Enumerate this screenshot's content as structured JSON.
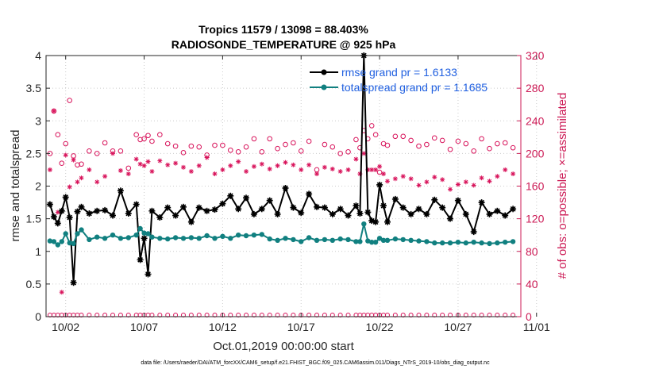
{
  "chart_data": {
    "type": "line",
    "title": "Tropics 11579 / 13098 = 88.403%",
    "subtitle": "RADIOSONDE_TEMPERATURE @ 925 hPa",
    "xlabel": "Oct.01,2019 00:00:00 start",
    "ylabel": "rmse and totalspread",
    "y2label": "# of obs: o=possible; ×=assimilated",
    "footer": "data file: /Users/raeder/DAI/ATM_forcXX/CAM6_setup/f.e21.FHIST_BGC.f09_025.CAM6assim.011/Diags_NTrS_2019-10/obs_diag_output.nc",
    "xlim": [
      0.75,
      31
    ],
    "ylim": [
      0,
      4
    ],
    "y2lim": [
      0,
      320
    ],
    "xticks": [
      2,
      7,
      12,
      17,
      22,
      27,
      32
    ],
    "xtick_labels": [
      "10/02",
      "10/07",
      "10/12",
      "10/17",
      "10/22",
      "10/27",
      "11/01"
    ],
    "yticks": [
      "0",
      "0.5",
      "1",
      "1.5",
      "2",
      "2.5",
      "3",
      "3.5",
      "4"
    ],
    "y2ticks": [
      "0",
      "40",
      "80",
      "120",
      "160",
      "200",
      "240",
      "280",
      "320"
    ],
    "grid": true,
    "legend_position": "top-right",
    "x": [
      1.0,
      1.25,
      1.5,
      1.75,
      2.0,
      2.25,
      2.5,
      2.75,
      3.0,
      3.5,
      4.0,
      4.5,
      5.0,
      5.5,
      6.0,
      6.5,
      6.75,
      7.0,
      7.25,
      7.5,
      8.0,
      8.5,
      9.0,
      9.5,
      10.0,
      10.5,
      11.0,
      11.5,
      12.0,
      12.5,
      13.0,
      13.5,
      14.0,
      14.5,
      15.0,
      15.5,
      16.0,
      16.5,
      17.0,
      17.5,
      18.0,
      18.5,
      19.0,
      19.5,
      20.0,
      20.5,
      20.75,
      21.0,
      21.25,
      21.5,
      21.75,
      22.0,
      22.25,
      22.5,
      23.0,
      23.5,
      24.0,
      24.5,
      25.0,
      25.5,
      26.0,
      26.5,
      27.0,
      27.5,
      28.0,
      28.5,
      29.0,
      29.5,
      30.0,
      30.5
    ],
    "series": [
      {
        "name": "rmse grand pr = 1.6133",
        "color": "#000000",
        "values": [
          1.72,
          1.53,
          1.43,
          1.62,
          1.83,
          1.52,
          0.52,
          1.61,
          1.68,
          1.58,
          1.62,
          1.63,
          1.55,
          1.93,
          1.58,
          1.72,
          0.87,
          1.2,
          0.65,
          1.62,
          1.52,
          1.67,
          1.55,
          1.68,
          1.45,
          1.67,
          1.62,
          1.64,
          1.73,
          1.85,
          1.65,
          1.82,
          1.57,
          1.65,
          1.78,
          1.57,
          1.97,
          1.67,
          1.59,
          1.88,
          1.68,
          1.67,
          1.57,
          1.65,
          1.55,
          1.7,
          1.58,
          4.0,
          1.6,
          1.47,
          1.45,
          2.02,
          1.7,
          1.45,
          1.8,
          1.67,
          1.57,
          1.65,
          1.57,
          1.79,
          1.67,
          1.5,
          1.78,
          1.57,
          1.3,
          1.75,
          1.57,
          1.62,
          1.55,
          1.65
        ]
      },
      {
        "name": "totalspread grand pr = 1.1685",
        "color": "#118080",
        "values": [
          1.16,
          1.15,
          1.1,
          1.15,
          1.27,
          1.13,
          1.12,
          1.27,
          1.33,
          1.18,
          1.22,
          1.2,
          1.25,
          1.2,
          1.21,
          1.25,
          1.35,
          1.28,
          1.27,
          1.22,
          1.2,
          1.19,
          1.21,
          1.2,
          1.21,
          1.2,
          1.24,
          1.2,
          1.23,
          1.2,
          1.25,
          1.24,
          1.25,
          1.26,
          1.19,
          1.17,
          1.2,
          1.18,
          1.15,
          1.21,
          1.17,
          1.18,
          1.17,
          1.19,
          1.18,
          1.15,
          1.15,
          1.42,
          1.16,
          1.14,
          1.14,
          1.2,
          1.17,
          1.17,
          1.19,
          1.18,
          1.17,
          1.16,
          1.15,
          1.13,
          1.13,
          1.13,
          1.14,
          1.13,
          1.14,
          1.13,
          1.12,
          1.13,
          1.14,
          1.15
        ]
      }
    ],
    "obs_possible": [
      200,
      252,
      223,
      188,
      212,
      265,
      197,
      186,
      187,
      203,
      200,
      213,
      203,
      203,
      182,
      223,
      217,
      218,
      222,
      215,
      223,
      212,
      209,
      201,
      209,
      208,
      198,
      210,
      210,
      204,
      202,
      208,
      218,
      202,
      218,
      206,
      211,
      213,
      203,
      215,
      180,
      211,
      208,
      200,
      202,
      217,
      207,
      228,
      218,
      234,
      223,
      177,
      212,
      210,
      221,
      221,
      216,
      209,
      211,
      219,
      216,
      205,
      215,
      212,
      203,
      218,
      206,
      212,
      213,
      207
    ],
    "obs_assimilated": [
      180,
      252,
      128,
      30,
      198,
      159,
      192,
      165,
      170,
      180,
      165,
      172,
      200,
      179,
      175,
      193,
      187,
      185,
      190,
      178,
      191,
      186,
      188,
      183,
      178,
      185,
      195,
      175,
      180,
      185,
      190,
      178,
      184,
      187,
      181,
      185,
      189,
      186,
      180,
      186,
      175,
      183,
      181,
      178,
      180,
      193,
      175,
      200,
      180,
      180,
      180,
      184,
      175,
      166,
      169,
      172,
      169,
      161,
      165,
      171,
      168,
      156,
      162,
      165,
      161,
      170,
      166,
      172,
      180,
      175
    ]
  }
}
